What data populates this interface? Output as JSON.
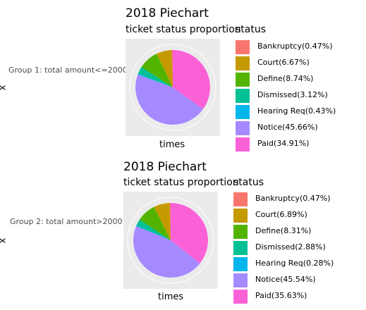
{
  "chart_data": [
    {
      "type": "pie",
      "title": "2018 Piechart",
      "subtitle": "ticket status proportion",
      "legend_title": "status",
      "legend_position": "right",
      "group_label": "Group 1: total amount<=2000",
      "xlabel": "times",
      "ylabel": "x",
      "categories": [
        "Bankruptcy",
        "Court",
        "Define",
        "Dismissed",
        "Hearing Req",
        "Notice",
        "Paid"
      ],
      "values": [
        0.47,
        6.67,
        8.74,
        3.12,
        0.43,
        45.66,
        34.91
      ],
      "legend_labels": [
        "Bankruptcy(0.47%)",
        "Court(6.67%)",
        "Define(8.74%)",
        "Dismissed(3.12%)",
        "Hearing Req(0.43%)",
        "Notice(45.66%)",
        "Paid(34.91%)"
      ],
      "colors": [
        "#F8766D",
        "#C49A00",
        "#53B400",
        "#00C094",
        "#00B6EB",
        "#A58AFF",
        "#FB61D7"
      ]
    },
    {
      "type": "pie",
      "title": "2018 Piechart",
      "subtitle": "ticket status proportion",
      "legend_title": "status",
      "legend_position": "right",
      "group_label": "Group 2: total amount>2000",
      "xlabel": "times",
      "ylabel": "x",
      "categories": [
        "Bankruptcy",
        "Court",
        "Define",
        "Dismissed",
        "Hearing Req",
        "Notice",
        "Paid"
      ],
      "values": [
        0.47,
        6.89,
        8.31,
        2.88,
        0.28,
        45.54,
        35.63
      ],
      "legend_labels": [
        "Bankruptcy(0.47%)",
        "Court(6.89%)",
        "Define(8.31%)",
        "Dismissed(2.88%)",
        "Hearing Req(0.28%)",
        "Notice(45.54%)",
        "Paid(35.63%)"
      ],
      "colors": [
        "#F8766D",
        "#C49A00",
        "#53B400",
        "#00C094",
        "#00B6EB",
        "#A58AFF",
        "#FB61D7"
      ]
    }
  ]
}
